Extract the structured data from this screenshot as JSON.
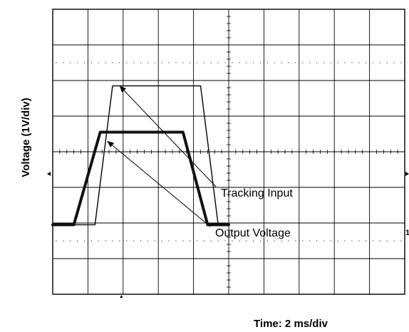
{
  "chart_data": {
    "type": "line",
    "title": "",
    "xlabel": "Time: 2 ms/div",
    "ylabel": "Voltage  (1V/div)",
    "x_divisions": 10,
    "y_divisions": 8,
    "x_unit": "ms",
    "y_unit": "V",
    "x_per_div": 2,
    "y_per_div": 1,
    "grid": true,
    "series": [
      {
        "name": "Tracking Input",
        "x": [
          0,
          2.4,
          3.4,
          6.0,
          8.4,
          9.4,
          10.0
        ],
        "y": [
          -2.05,
          -2.05,
          1.85,
          1.85,
          1.85,
          -2.05,
          -2.05
        ],
        "stroke_width": 1.5
      },
      {
        "name": "Output Voltage",
        "x": [
          0,
          1.2,
          2.7,
          7.4,
          8.8,
          10.0
        ],
        "y": [
          -2.05,
          -2.05,
          0.55,
          0.55,
          -2.05,
          -2.05
        ],
        "stroke_width": 4
      }
    ],
    "annotations": [
      {
        "text": "Tracking Input",
        "points_to": {
          "x": 3.8,
          "y": 1.85
        }
      },
      {
        "text": "Output Voltage",
        "points_to": {
          "x": 3.1,
          "y": 0.3
        }
      }
    ]
  }
}
